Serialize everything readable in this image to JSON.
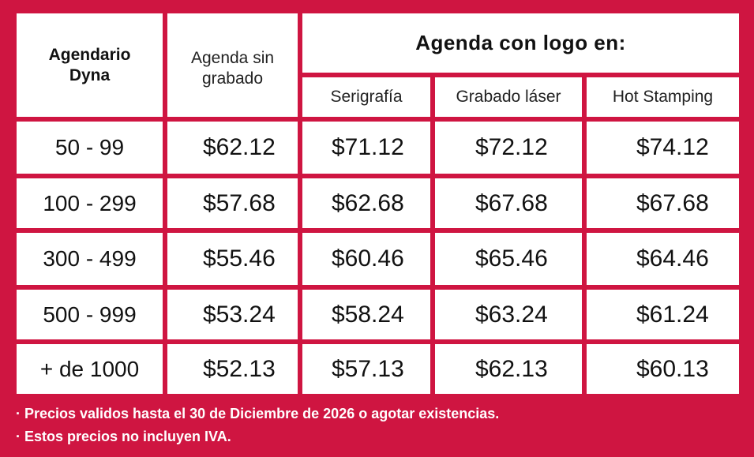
{
  "header": {
    "product": "Agendario Dyna",
    "no_engraving": "Agenda sin grabado",
    "logo_group": "Agenda con logo en:",
    "methods": [
      "Serigrafía",
      "Grabado láser",
      "Hot Stamping"
    ]
  },
  "rows": [
    {
      "qty": "50 - 99",
      "plain": "$62.12",
      "serigrafia": "$71.12",
      "laser": "$72.12",
      "hot": "$74.12"
    },
    {
      "qty": "100 - 299",
      "plain": "$57.68",
      "serigrafia": "$62.68",
      "laser": "$67.68",
      "hot": "$67.68"
    },
    {
      "qty": "300 - 499",
      "plain": "$55.46",
      "serigrafia": "$60.46",
      "laser": "$65.46",
      "hot": "$64.46"
    },
    {
      "qty": "500 - 999",
      "plain": "$53.24",
      "serigrafia": "$58.24",
      "laser": "$63.24",
      "hot": "$61.24"
    },
    {
      "qty": "+ de 1000",
      "plain": "$52.13",
      "serigrafia": "$57.13",
      "laser": "$62.13",
      "hot": "$60.13"
    }
  ],
  "notes": [
    "· Precios validos hasta el 30 de Diciembre de 2026 o agotar existencias.",
    "· Estos precios no incluyen IVA."
  ],
  "colors": {
    "background": "#cf1541",
    "cell": "#ffffff",
    "text": "#111111"
  }
}
